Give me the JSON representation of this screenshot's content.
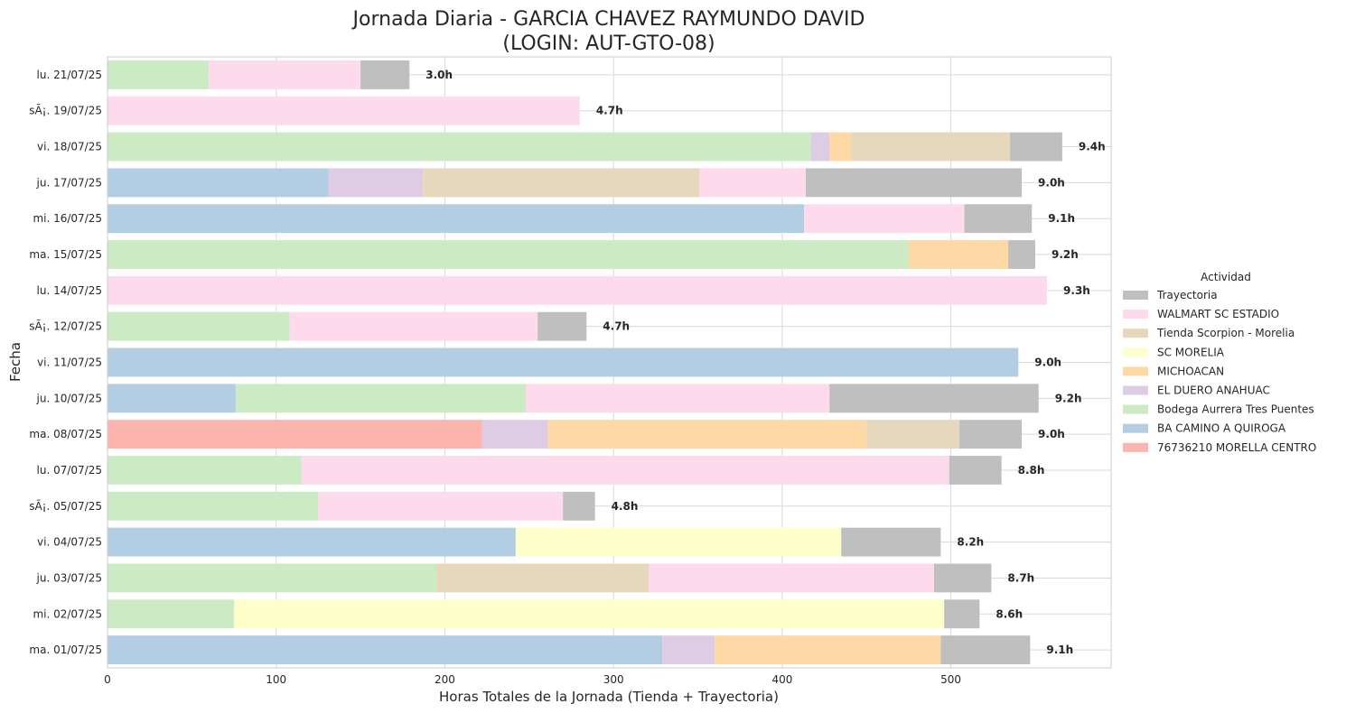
{
  "chart_data": {
    "type": "bar",
    "orientation": "horizontal",
    "stacked": true,
    "title": "Jornada Diaria - GARCIA CHAVEZ RAYMUNDO DAVID",
    "subtitle": "(LOGIN: AUT-GTO-08)",
    "xlabel": "Horas Totales de la Jornada (Tienda + Trayectoria)",
    "ylabel": "Fecha",
    "xlim": [
      0,
      595
    ],
    "xticks": [
      0,
      100,
      200,
      300,
      400,
      500
    ],
    "grid": true,
    "legend": {
      "title": "Actividad",
      "placement": "right"
    },
    "categories": [
      "lu. 21/07/25",
      "sÃ¡. 19/07/25",
      "vi. 18/07/25",
      "ju. 17/07/25",
      "mi. 16/07/25",
      "ma. 15/07/25",
      "lu. 14/07/25",
      "sÃ¡. 12/07/25",
      "vi. 11/07/25",
      "ju. 10/07/25",
      "ma. 08/07/25",
      "lu. 07/07/25",
      "sÃ¡. 05/07/25",
      "vi. 04/07/25",
      "ju. 03/07/25",
      "mi. 02/07/25",
      "ma. 01/07/25"
    ],
    "totals_labels": [
      "3.0h",
      "4.7h",
      "9.4h",
      "9.0h",
      "9.1h",
      "9.2h",
      "9.3h",
      "4.7h",
      "9.0h",
      "9.2h",
      "9.0h",
      "8.8h",
      "4.8h",
      "8.2h",
      "8.7h",
      "8.6h",
      "9.1h"
    ],
    "series": [
      {
        "name": "76736210 MORELLA CENTRO",
        "color": "#fbb4ae",
        "values": [
          0,
          0,
          0,
          0,
          0,
          0,
          0,
          0,
          0,
          0,
          222,
          0,
          0,
          0,
          0,
          0,
          0
        ]
      },
      {
        "name": "BA CAMINO A QUIROGA",
        "color": "#b3cde3",
        "values": [
          0,
          0,
          0,
          131,
          413,
          0,
          0,
          0,
          540,
          76,
          0,
          0,
          0,
          242,
          0,
          0,
          329
        ]
      },
      {
        "name": "Bodega Aurrera Tres Puentes",
        "color": "#ccebc5",
        "values": [
          60,
          0,
          417,
          0,
          0,
          475,
          0,
          108,
          0,
          172,
          0,
          115,
          125,
          0,
          195,
          75,
          0
        ]
      },
      {
        "name": "EL DUERO ANAHUAC",
        "color": "#decbe4",
        "values": [
          0,
          0,
          11,
          56,
          0,
          0,
          0,
          0,
          0,
          0,
          39,
          0,
          0,
          0,
          0,
          0,
          31
        ]
      },
      {
        "name": "MICHOACAN",
        "color": "#fed9a6",
        "values": [
          0,
          0,
          13,
          0,
          0,
          59,
          0,
          0,
          0,
          0,
          189,
          0,
          0,
          0,
          0,
          0,
          134
        ]
      },
      {
        "name": "SC MORELIA",
        "color": "#ffffcc",
        "values": [
          0,
          0,
          0,
          0,
          0,
          0,
          0,
          0,
          0,
          0,
          0,
          0,
          0,
          193,
          0,
          421,
          0
        ]
      },
      {
        "name": "Tienda Scorpion - Morelia",
        "color": "#e5d8bd",
        "values": [
          0,
          0,
          94,
          164,
          0,
          0,
          0,
          0,
          0,
          0,
          55,
          0,
          0,
          0,
          126,
          0,
          0
        ]
      },
      {
        "name": "WALMART SC ESTADIO",
        "color": "#fddaec",
        "values": [
          90,
          280,
          0,
          63,
          95,
          0,
          557,
          147,
          0,
          180,
          0,
          384,
          145,
          0,
          169,
          0,
          0
        ]
      },
      {
        "name": "Trayectoria",
        "color": "#bfbfbf",
        "values": [
          29,
          0,
          31,
          128,
          40,
          16,
          0,
          29,
          0,
          124,
          37,
          31,
          19,
          59,
          34,
          21,
          53
        ]
      }
    ]
  }
}
